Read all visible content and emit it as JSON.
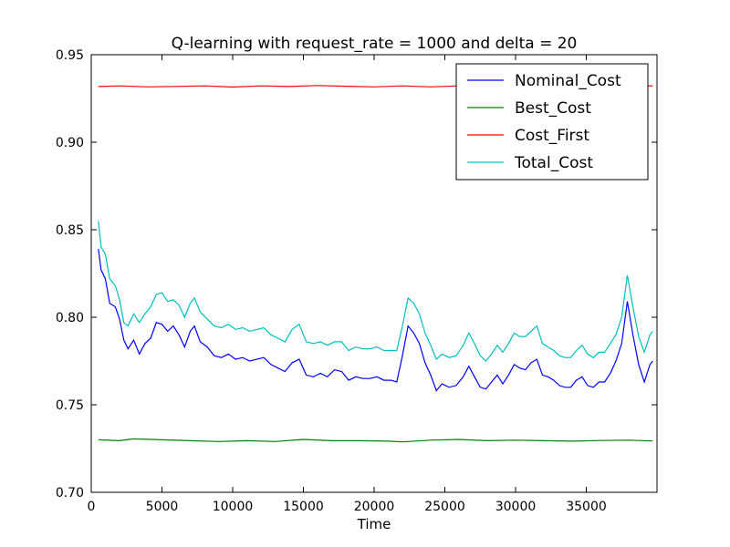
{
  "chart_data": {
    "type": "line",
    "title": "Q-learning with request_rate = 1000 and delta = 20",
    "xlabel": "Time",
    "ylabel": "",
    "xlim": [
      0,
      40000
    ],
    "ylim": [
      0.7,
      0.95
    ],
    "xticks": [
      0,
      5000,
      10000,
      15000,
      20000,
      25000,
      30000,
      35000
    ],
    "xtick_labels": [
      "0",
      "5000",
      "10000",
      "15000",
      "20000",
      "25000",
      "30000",
      "35000"
    ],
    "yticks": [
      0.7,
      0.75,
      0.8,
      0.85,
      0.9,
      0.95
    ],
    "ytick_labels": [
      "0.70",
      "0.75",
      "0.80",
      "0.85",
      "0.90",
      "0.95"
    ],
    "grid": false,
    "legend_position": "top-right",
    "series": [
      {
        "name": "Nominal_Cost",
        "color": "#0000ff",
        "points": [
          [
            500,
            0.839
          ],
          [
            700,
            0.827
          ],
          [
            1000,
            0.822
          ],
          [
            1300,
            0.808
          ],
          [
            1700,
            0.806
          ],
          [
            2000,
            0.799
          ],
          [
            2300,
            0.787
          ],
          [
            2600,
            0.782
          ],
          [
            3000,
            0.787
          ],
          [
            3400,
            0.779
          ],
          [
            3800,
            0.785
          ],
          [
            4200,
            0.788
          ],
          [
            4600,
            0.797
          ],
          [
            5000,
            0.796
          ],
          [
            5400,
            0.792
          ],
          [
            5800,
            0.795
          ],
          [
            6200,
            0.79
          ],
          [
            6600,
            0.783
          ],
          [
            7000,
            0.792
          ],
          [
            7300,
            0.795
          ],
          [
            7700,
            0.786
          ],
          [
            8200,
            0.783
          ],
          [
            8700,
            0.778
          ],
          [
            9200,
            0.777
          ],
          [
            9700,
            0.779
          ],
          [
            10200,
            0.776
          ],
          [
            10700,
            0.777
          ],
          [
            11200,
            0.775
          ],
          [
            11700,
            0.776
          ],
          [
            12200,
            0.777
          ],
          [
            12700,
            0.773
          ],
          [
            13200,
            0.771
          ],
          [
            13700,
            0.769
          ],
          [
            14200,
            0.774
          ],
          [
            14700,
            0.776
          ],
          [
            15200,
            0.767
          ],
          [
            15700,
            0.766
          ],
          [
            16200,
            0.768
          ],
          [
            16700,
            0.766
          ],
          [
            17200,
            0.77
          ],
          [
            17700,
            0.769
          ],
          [
            18200,
            0.764
          ],
          [
            18700,
            0.766
          ],
          [
            19200,
            0.765
          ],
          [
            19700,
            0.765
          ],
          [
            20200,
            0.766
          ],
          [
            20700,
            0.764
          ],
          [
            21200,
            0.764
          ],
          [
            21600,
            0.763
          ],
          [
            22000,
            0.778
          ],
          [
            22400,
            0.795
          ],
          [
            22800,
            0.791
          ],
          [
            23200,
            0.785
          ],
          [
            23600,
            0.774
          ],
          [
            24000,
            0.767
          ],
          [
            24400,
            0.758
          ],
          [
            24800,
            0.762
          ],
          [
            25300,
            0.76
          ],
          [
            25800,
            0.761
          ],
          [
            26300,
            0.766
          ],
          [
            26700,
            0.772
          ],
          [
            27100,
            0.766
          ],
          [
            27500,
            0.76
          ],
          [
            27900,
            0.759
          ],
          [
            28300,
            0.763
          ],
          [
            28700,
            0.767
          ],
          [
            29100,
            0.762
          ],
          [
            29500,
            0.767
          ],
          [
            29900,
            0.773
          ],
          [
            30300,
            0.771
          ],
          [
            30700,
            0.77
          ],
          [
            31100,
            0.774
          ],
          [
            31500,
            0.776
          ],
          [
            31900,
            0.767
          ],
          [
            32300,
            0.766
          ],
          [
            32700,
            0.764
          ],
          [
            33100,
            0.761
          ],
          [
            33500,
            0.76
          ],
          [
            33900,
            0.76
          ],
          [
            34300,
            0.764
          ],
          [
            34700,
            0.766
          ],
          [
            35100,
            0.761
          ],
          [
            35500,
            0.76
          ],
          [
            35900,
            0.763
          ],
          [
            36300,
            0.763
          ],
          [
            36700,
            0.768
          ],
          [
            37100,
            0.775
          ],
          [
            37500,
            0.785
          ],
          [
            37900,
            0.809
          ],
          [
            38300,
            0.79
          ],
          [
            38700,
            0.773
          ],
          [
            39100,
            0.763
          ],
          [
            39500,
            0.773
          ],
          [
            39700,
            0.775
          ]
        ]
      },
      {
        "name": "Best_Cost",
        "color": "#008000",
        "points": [
          [
            500,
            0.73
          ],
          [
            2000,
            0.7295
          ],
          [
            3000,
            0.7305
          ],
          [
            5000,
            0.73
          ],
          [
            7000,
            0.7295
          ],
          [
            9000,
            0.729
          ],
          [
            11000,
            0.7295
          ],
          [
            13000,
            0.729
          ],
          [
            15000,
            0.7302
          ],
          [
            17000,
            0.7295
          ],
          [
            19000,
            0.7295
          ],
          [
            21000,
            0.7292
          ],
          [
            22000,
            0.7288
          ],
          [
            24000,
            0.7298
          ],
          [
            26000,
            0.7302
          ],
          [
            28000,
            0.7295
          ],
          [
            30000,
            0.7298
          ],
          [
            32000,
            0.7295
          ],
          [
            34000,
            0.7292
          ],
          [
            36000,
            0.7296
          ],
          [
            38000,
            0.7298
          ],
          [
            39700,
            0.7293
          ]
        ]
      },
      {
        "name": "Cost_First",
        "color": "#ff0000",
        "points": [
          [
            500,
            0.9318
          ],
          [
            2000,
            0.9322
          ],
          [
            4000,
            0.9316
          ],
          [
            6000,
            0.9319
          ],
          [
            8000,
            0.9322
          ],
          [
            10000,
            0.9315
          ],
          [
            12000,
            0.9322
          ],
          [
            14000,
            0.9318
          ],
          [
            16000,
            0.9324
          ],
          [
            18000,
            0.932
          ],
          [
            20000,
            0.9316
          ],
          [
            22000,
            0.9322
          ],
          [
            24000,
            0.9316
          ],
          [
            26000,
            0.9322
          ],
          [
            28000,
            0.9318
          ],
          [
            30000,
            0.932
          ],
          [
            32000,
            0.9318
          ],
          [
            34000,
            0.9322
          ],
          [
            36000,
            0.9318
          ],
          [
            38000,
            0.932
          ],
          [
            39700,
            0.9322
          ]
        ]
      },
      {
        "name": "Total_Cost",
        "color": "#00bfbf",
        "points": [
          [
            500,
            0.855
          ],
          [
            700,
            0.84
          ],
          [
            1000,
            0.836
          ],
          [
            1300,
            0.822
          ],
          [
            1700,
            0.818
          ],
          [
            2000,
            0.81
          ],
          [
            2300,
            0.797
          ],
          [
            2600,
            0.795
          ],
          [
            3000,
            0.802
          ],
          [
            3400,
            0.797
          ],
          [
            3800,
            0.802
          ],
          [
            4200,
            0.806
          ],
          [
            4600,
            0.813
          ],
          [
            5000,
            0.814
          ],
          [
            5400,
            0.809
          ],
          [
            5800,
            0.81
          ],
          [
            6200,
            0.807
          ],
          [
            6600,
            0.8
          ],
          [
            7000,
            0.808
          ],
          [
            7300,
            0.811
          ],
          [
            7700,
            0.803
          ],
          [
            8200,
            0.799
          ],
          [
            8700,
            0.795
          ],
          [
            9200,
            0.794
          ],
          [
            9700,
            0.796
          ],
          [
            10200,
            0.793
          ],
          [
            10700,
            0.794
          ],
          [
            11200,
            0.792
          ],
          [
            11700,
            0.793
          ],
          [
            12200,
            0.794
          ],
          [
            12700,
            0.79
          ],
          [
            13200,
            0.788
          ],
          [
            13700,
            0.786
          ],
          [
            14200,
            0.793
          ],
          [
            14700,
            0.796
          ],
          [
            15200,
            0.786
          ],
          [
            15700,
            0.785
          ],
          [
            16200,
            0.786
          ],
          [
            16700,
            0.784
          ],
          [
            17200,
            0.786
          ],
          [
            17700,
            0.786
          ],
          [
            18200,
            0.781
          ],
          [
            18700,
            0.783
          ],
          [
            19200,
            0.782
          ],
          [
            19700,
            0.782
          ],
          [
            20200,
            0.783
          ],
          [
            20700,
            0.781
          ],
          [
            21200,
            0.781
          ],
          [
            21600,
            0.781
          ],
          [
            22000,
            0.795
          ],
          [
            22400,
            0.811
          ],
          [
            22800,
            0.808
          ],
          [
            23200,
            0.802
          ],
          [
            23600,
            0.791
          ],
          [
            24000,
            0.784
          ],
          [
            24400,
            0.776
          ],
          [
            24800,
            0.779
          ],
          [
            25300,
            0.777
          ],
          [
            25800,
            0.778
          ],
          [
            26300,
            0.784
          ],
          [
            26700,
            0.791
          ],
          [
            27100,
            0.785
          ],
          [
            27500,
            0.778
          ],
          [
            27900,
            0.775
          ],
          [
            28300,
            0.779
          ],
          [
            28700,
            0.784
          ],
          [
            29100,
            0.78
          ],
          [
            29500,
            0.785
          ],
          [
            29900,
            0.791
          ],
          [
            30300,
            0.789
          ],
          [
            30700,
            0.789
          ],
          [
            31100,
            0.792
          ],
          [
            31500,
            0.795
          ],
          [
            31900,
            0.785
          ],
          [
            32300,
            0.783
          ],
          [
            32700,
            0.781
          ],
          [
            33100,
            0.778
          ],
          [
            33500,
            0.777
          ],
          [
            33900,
            0.777
          ],
          [
            34300,
            0.781
          ],
          [
            34700,
            0.784
          ],
          [
            35100,
            0.779
          ],
          [
            35500,
            0.777
          ],
          [
            35900,
            0.78
          ],
          [
            36300,
            0.78
          ],
          [
            36700,
            0.785
          ],
          [
            37100,
            0.79
          ],
          [
            37500,
            0.8
          ],
          [
            37900,
            0.824
          ],
          [
            38300,
            0.806
          ],
          [
            38700,
            0.789
          ],
          [
            39100,
            0.78
          ],
          [
            39500,
            0.79
          ],
          [
            39700,
            0.792
          ]
        ]
      }
    ]
  }
}
